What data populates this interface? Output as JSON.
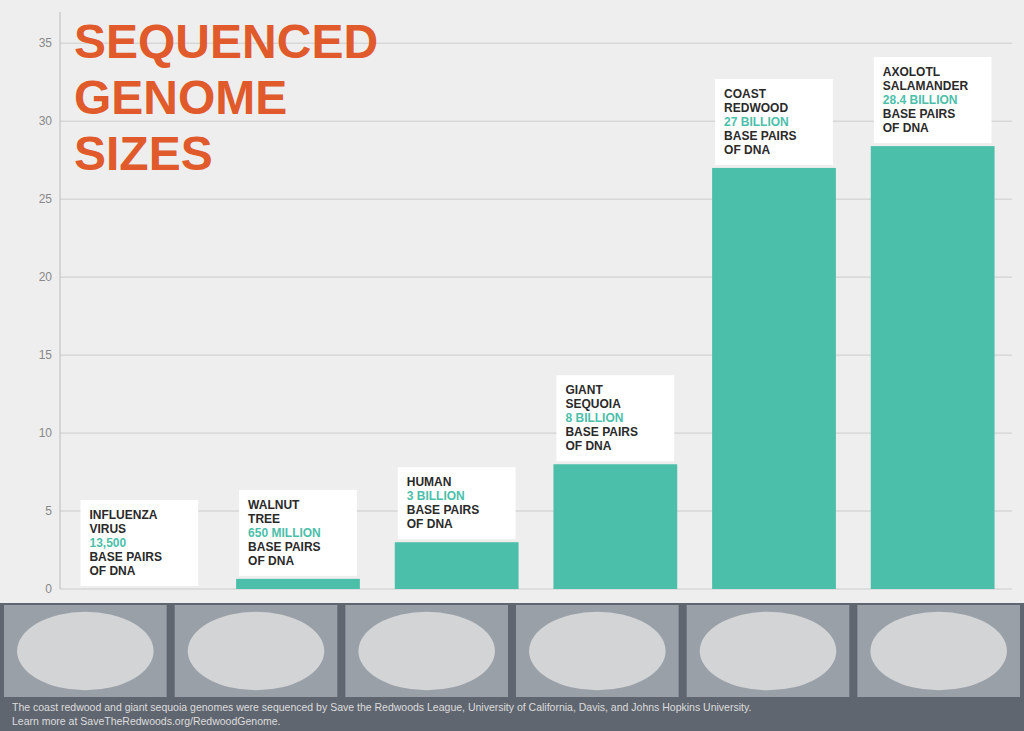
{
  "chart_data": {
    "type": "bar",
    "title": "SEQUENCED\nGENOME\nSIZES",
    "categories": [
      "INFLUENZA\nVIRUS",
      "WALNUT\nTREE",
      "HUMAN",
      "GIANT\nSEQUOIA",
      "COAST\nREDWOOD",
      "AXOLOTL\nSALAMANDER"
    ],
    "values": [
      1.35e-05,
      0.65,
      3.0,
      8.0,
      27.0,
      28.4
    ],
    "value_labels": [
      "13,500",
      "650 MILLION",
      "3 BILLION",
      "8 BILLION",
      "27 BILLION",
      "28.4 BILLION"
    ],
    "data_labels": true,
    "annotations": [
      "BASE PAIRS\nOF DNA",
      "The coast redwood and giant sequoia genomes were sequenced by Save the Redwoods League, University of California, Davis, and Johns Hopkins University.",
      "Learn more at SaveTheRedwoods.org/RedwoodGenome."
    ],
    "color": "#4BBFAA",
    "ylim": [
      0,
      37
    ],
    "yticks": [
      0,
      5,
      10,
      15,
      20,
      25,
      30,
      35
    ],
    "grid": true,
    "tick_labels": "y"
  }
}
